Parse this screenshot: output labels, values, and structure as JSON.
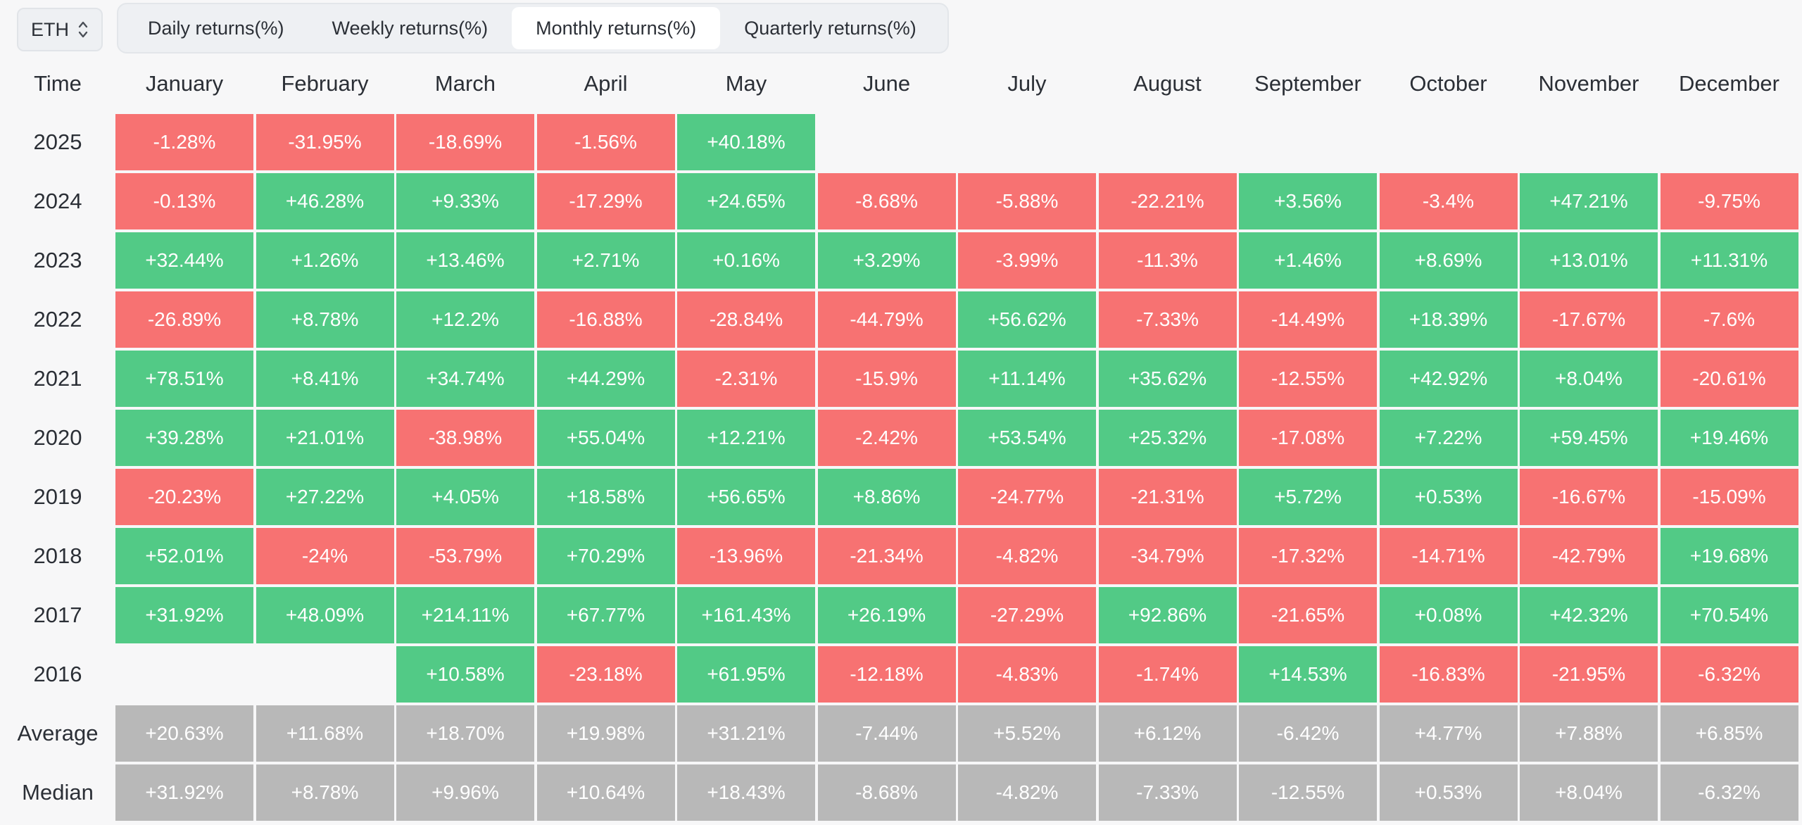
{
  "asset_selector": {
    "value": "ETH",
    "icon": "chevron-up-down-icon"
  },
  "tabs": [
    {
      "label": "Daily returns(%)",
      "active": false
    },
    {
      "label": "Weekly returns(%)",
      "active": false
    },
    {
      "label": "Monthly returns(%)",
      "active": true
    },
    {
      "label": "Quarterly returns(%)",
      "active": false
    }
  ],
  "table": {
    "corner_label": "Time",
    "months": [
      "January",
      "February",
      "March",
      "April",
      "May",
      "June",
      "July",
      "August",
      "September",
      "October",
      "November",
      "December"
    ],
    "colors": {
      "positive": "#52ca86",
      "negative": "#f77272",
      "summary": "#b8b8b8"
    },
    "rows": [
      {
        "label": "2025",
        "values": [
          "-1.28%",
          "-31.95%",
          "-18.69%",
          "-1.56%",
          "+40.18%",
          "",
          "",
          "",
          "",
          "",
          "",
          ""
        ]
      },
      {
        "label": "2024",
        "values": [
          "-0.13%",
          "+46.28%",
          "+9.33%",
          "-17.29%",
          "+24.65%",
          "-8.68%",
          "-5.88%",
          "-22.21%",
          "+3.56%",
          "-3.4%",
          "+47.21%",
          "-9.75%"
        ]
      },
      {
        "label": "2023",
        "values": [
          "+32.44%",
          "+1.26%",
          "+13.46%",
          "+2.71%",
          "+0.16%",
          "+3.29%",
          "-3.99%",
          "-11.3%",
          "+1.46%",
          "+8.69%",
          "+13.01%",
          "+11.31%"
        ]
      },
      {
        "label": "2022",
        "values": [
          "-26.89%",
          "+8.78%",
          "+12.2%",
          "-16.88%",
          "-28.84%",
          "-44.79%",
          "+56.62%",
          "-7.33%",
          "-14.49%",
          "+18.39%",
          "-17.67%",
          "-7.6%"
        ]
      },
      {
        "label": "2021",
        "values": [
          "+78.51%",
          "+8.41%",
          "+34.74%",
          "+44.29%",
          "-2.31%",
          "-15.9%",
          "+11.14%",
          "+35.62%",
          "-12.55%",
          "+42.92%",
          "+8.04%",
          "-20.61%"
        ]
      },
      {
        "label": "2020",
        "values": [
          "+39.28%",
          "+21.01%",
          "-38.98%",
          "+55.04%",
          "+12.21%",
          "-2.42%",
          "+53.54%",
          "+25.32%",
          "-17.08%",
          "+7.22%",
          "+59.45%",
          "+19.46%"
        ]
      },
      {
        "label": "2019",
        "values": [
          "-20.23%",
          "+27.22%",
          "+4.05%",
          "+18.58%",
          "+56.65%",
          "+8.86%",
          "-24.77%",
          "-21.31%",
          "+5.72%",
          "+0.53%",
          "-16.67%",
          "-15.09%"
        ]
      },
      {
        "label": "2018",
        "values": [
          "+52.01%",
          "-24%",
          "-53.79%",
          "+70.29%",
          "-13.96%",
          "-21.34%",
          "-4.82%",
          "-34.79%",
          "-17.32%",
          "-14.71%",
          "-42.79%",
          "+19.68%"
        ]
      },
      {
        "label": "2017",
        "values": [
          "+31.92%",
          "+48.09%",
          "+214.11%",
          "+67.77%",
          "+161.43%",
          "+26.19%",
          "-27.29%",
          "+92.86%",
          "-21.65%",
          "+0.08%",
          "+42.32%",
          "+70.54%"
        ]
      },
      {
        "label": "2016",
        "values": [
          "",
          "",
          "+10.58%",
          "-23.18%",
          "+61.95%",
          "-12.18%",
          "-4.83%",
          "-1.74%",
          "+14.53%",
          "-16.83%",
          "-21.95%",
          "-6.32%"
        ]
      }
    ],
    "summary_rows": [
      {
        "label": "Average",
        "values": [
          "+20.63%",
          "+11.68%",
          "+18.70%",
          "+19.98%",
          "+31.21%",
          "-7.44%",
          "+5.52%",
          "+6.12%",
          "-6.42%",
          "+4.77%",
          "+7.88%",
          "+6.85%"
        ]
      },
      {
        "label": "Median",
        "values": [
          "+31.92%",
          "+8.78%",
          "+9.96%",
          "+10.64%",
          "+18.43%",
          "-8.68%",
          "-4.82%",
          "-7.33%",
          "-12.55%",
          "+0.53%",
          "+8.04%",
          "-6.32%"
        ]
      }
    ]
  }
}
